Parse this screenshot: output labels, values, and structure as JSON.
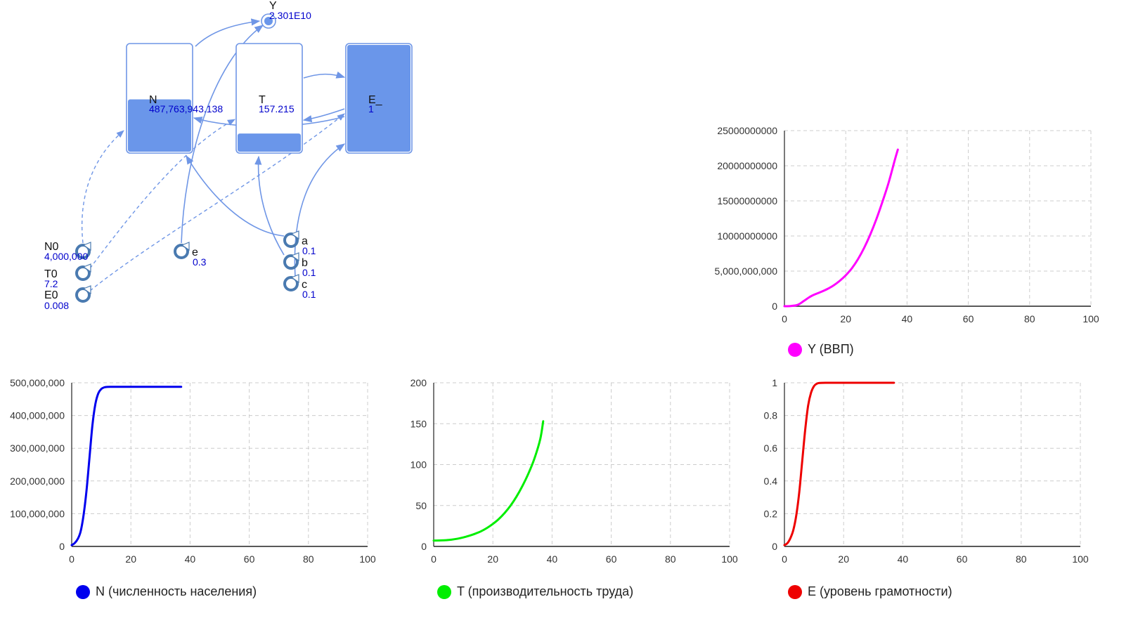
{
  "diagram": {
    "stocks": [
      {
        "id": "N",
        "name": "N",
        "value": "487,763,943.138",
        "fill": 0.49
      },
      {
        "id": "T",
        "name": "T",
        "value": "157.215",
        "fill": 0.17
      },
      {
        "id": "E",
        "name": "E_",
        "value": "1",
        "fill": 1.0
      }
    ],
    "output": {
      "name": "Y",
      "value": "2.301E10"
    },
    "params": [
      {
        "id": "N0",
        "name": "N0",
        "value": "4,000,000"
      },
      {
        "id": "T0",
        "name": "T0",
        "value": "7.2"
      },
      {
        "id": "E0",
        "name": "E0",
        "value": "0.008"
      },
      {
        "id": "e",
        "name": "e",
        "value": "0.3"
      },
      {
        "id": "a",
        "name": "a",
        "value": "0.1"
      },
      {
        "id": "b",
        "name": "b",
        "value": "0.1"
      },
      {
        "id": "c",
        "name": "c",
        "value": "0.1"
      }
    ],
    "colors": {
      "stroke": "#6f96e6",
      "fill": "#6a96ea",
      "value_text": "#0000cc",
      "param_icon": "#4a7ab0"
    }
  },
  "chart_data": [
    {
      "id": "Y",
      "type": "line",
      "title": "",
      "xlabel": "",
      "ylabel": "",
      "xlim": [
        0,
        100
      ],
      "ylim": [
        0,
        25000000000
      ],
      "x_ticks": [
        0,
        20,
        40,
        60,
        80,
        100
      ],
      "x_tick_labels": [
        "0",
        "20",
        "40",
        "60",
        "80",
        "100"
      ],
      "y_ticks": [
        0,
        5000000000,
        10000000000,
        15000000000,
        20000000000,
        25000000000
      ],
      "y_tick_labels": [
        "0",
        "5,000,000,000",
        "10000000000",
        "15000000000",
        "20000000000",
        "25000000000"
      ],
      "grid": true,
      "legend_position": "bottom-left",
      "series": [
        {
          "name": "Y (ВВП)",
          "color": "#ff00ff",
          "x": [
            0,
            2,
            4,
            5,
            6,
            7,
            8,
            9,
            10,
            12,
            14,
            16,
            18,
            20,
            22,
            24,
            26,
            28,
            30,
            32,
            34,
            36,
            37
          ],
          "y": [
            0,
            30000000,
            150000000,
            350000000,
            650000000,
            950000000,
            1250000000,
            1500000000,
            1700000000,
            2050000000,
            2450000000,
            2950000000,
            3600000000,
            4400000000,
            5400000000,
            6700000000,
            8300000000,
            10200000000,
            12400000000,
            14900000000,
            17600000000,
            20800000000,
            22300000000
          ]
        }
      ]
    },
    {
      "id": "N",
      "type": "line",
      "title": "",
      "xlabel": "",
      "ylabel": "",
      "xlim": [
        0,
        100
      ],
      "ylim": [
        0,
        500000000
      ],
      "x_ticks": [
        0,
        20,
        40,
        60,
        80,
        100
      ],
      "x_tick_labels": [
        "0",
        "20",
        "40",
        "60",
        "80",
        "100"
      ],
      "y_ticks": [
        0,
        100000000,
        200000000,
        300000000,
        400000000,
        500000000
      ],
      "y_tick_labels": [
        "0",
        "100,000,000",
        "200,000,000",
        "300,000,000",
        "400,000,000",
        "500,000,000"
      ],
      "grid": true,
      "legend_position": "bottom-left",
      "series": [
        {
          "name": "N (численность населения)",
          "color": "#0000ee",
          "x": [
            0,
            1,
            2,
            3,
            4,
            5,
            6,
            7,
            8,
            9,
            10,
            11,
            12,
            14,
            20,
            37
          ],
          "y": [
            4000000,
            10000000,
            22000000,
            45000000,
            95000000,
            170000000,
            270000000,
            370000000,
            435000000,
            468000000,
            481000000,
            486000000,
            487500000,
            487700000,
            487760000,
            487763943
          ]
        }
      ]
    },
    {
      "id": "T",
      "type": "line",
      "title": "",
      "xlabel": "",
      "ylabel": "",
      "xlim": [
        0,
        100
      ],
      "ylim": [
        0,
        200
      ],
      "x_ticks": [
        0,
        20,
        40,
        60,
        80,
        100
      ],
      "x_tick_labels": [
        "0",
        "20",
        "40",
        "60",
        "80",
        "100"
      ],
      "y_ticks": [
        0,
        50,
        100,
        150,
        200
      ],
      "y_tick_labels": [
        "0",
        "50",
        "100",
        "150",
        "200"
      ],
      "grid": true,
      "legend_position": "bottom-left",
      "series": [
        {
          "name": "T (производительность труда)",
          "color": "#00ee00",
          "x": [
            0,
            2,
            4,
            6,
            8,
            10,
            12,
            14,
            16,
            18,
            20,
            22,
            24,
            26,
            28,
            30,
            32,
            34,
            36,
            37
          ],
          "y": [
            7.2,
            7.3,
            7.6,
            8.3,
            9.4,
            11,
            13,
            15.5,
            18.5,
            22.5,
            27.5,
            33.5,
            41,
            50,
            61,
            74,
            89,
            107,
            131,
            153
          ]
        }
      ]
    },
    {
      "id": "E",
      "type": "line",
      "title": "",
      "xlabel": "",
      "ylabel": "",
      "xlim": [
        0,
        100
      ],
      "ylim": [
        0,
        1
      ],
      "x_ticks": [
        0,
        20,
        40,
        60,
        80,
        100
      ],
      "x_tick_labels": [
        "0",
        "20",
        "40",
        "60",
        "80",
        "100"
      ],
      "y_ticks": [
        0,
        0.2,
        0.4,
        0.6,
        0.8,
        1
      ],
      "y_tick_labels": [
        "0",
        "0.2",
        "0.4",
        "0.6",
        "0.8",
        "1"
      ],
      "grid": true,
      "legend_position": "bottom-left",
      "series": [
        {
          "name": "E (уровень грамотности)",
          "color": "#ee0000",
          "x": [
            0,
            1,
            2,
            3,
            4,
            5,
            6,
            7,
            8,
            9,
            10,
            11,
            12,
            14,
            20,
            37
          ],
          "y": [
            0.008,
            0.02,
            0.05,
            0.1,
            0.19,
            0.33,
            0.52,
            0.71,
            0.86,
            0.94,
            0.98,
            0.995,
            0.999,
            1,
            1,
            1
          ]
        }
      ]
    }
  ]
}
